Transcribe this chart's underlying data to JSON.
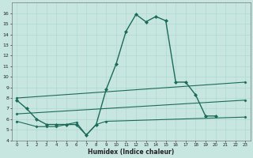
{
  "xlabel": "Humidex (Indice chaleur)",
  "background_color": "#c8e6e0",
  "line_color": "#1a6b5a",
  "grid_color": "#b0d8d0",
  "xlim": [
    -0.5,
    23.5
  ],
  "ylim": [
    4,
    17
  ],
  "xticks": [
    0,
    1,
    2,
    3,
    4,
    5,
    6,
    7,
    8,
    9,
    10,
    11,
    12,
    13,
    14,
    15,
    16,
    17,
    18,
    19,
    20,
    21,
    22,
    23
  ],
  "yticks": [
    4,
    5,
    6,
    7,
    8,
    9,
    10,
    11,
    12,
    13,
    14,
    15,
    16
  ],
  "series": [
    {
      "x": [
        0,
        1,
        2,
        3,
        4,
        5,
        6,
        7,
        8,
        9,
        10,
        11,
        12,
        13,
        14,
        15,
        16,
        17,
        18,
        19,
        20
      ],
      "y": [
        7.8,
        7.0,
        6.0,
        5.5,
        5.5,
        5.5,
        5.5,
        4.5,
        5.5,
        8.8,
        11.2,
        14.3,
        15.9,
        15.2,
        15.7,
        15.3,
        9.5,
        9.5,
        8.3,
        6.3,
        6.3
      ]
    },
    {
      "x": [
        0,
        23
      ],
      "y": [
        8.0,
        9.5
      ]
    },
    {
      "x": [
        0,
        23
      ],
      "y": [
        6.5,
        7.8
      ]
    },
    {
      "x": [
        0,
        2,
        3,
        4,
        5,
        6,
        7,
        8,
        9,
        23
      ],
      "y": [
        5.8,
        5.3,
        5.3,
        5.3,
        5.5,
        5.7,
        4.5,
        5.5,
        5.8,
        6.2
      ]
    }
  ],
  "line_configs": [
    {
      "lw": 1.0,
      "marker": "D",
      "ms": 2.0,
      "ls": "-"
    },
    {
      "lw": 0.8,
      "marker": "D",
      "ms": 1.5,
      "ls": "-"
    },
    {
      "lw": 0.8,
      "marker": "D",
      "ms": 1.5,
      "ls": "-"
    },
    {
      "lw": 0.8,
      "marker": "D",
      "ms": 1.5,
      "ls": "-"
    }
  ]
}
